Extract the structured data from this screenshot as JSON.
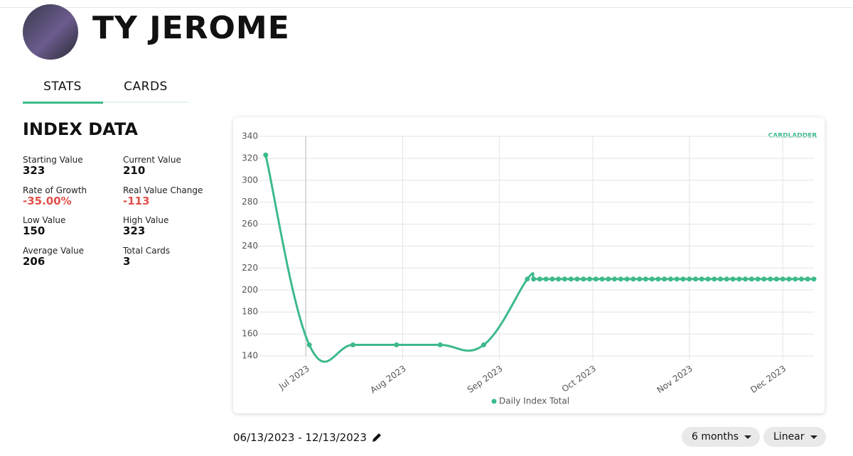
{
  "header": {
    "name": "TY JEROME"
  },
  "tabs": [
    "STATS",
    "CARDS"
  ],
  "index_data": {
    "title": "INDEX DATA",
    "stats": [
      {
        "label": "Starting Value",
        "value": 323
      },
      {
        "label": "Current Value",
        "value": 210
      },
      {
        "label": "Rate of Growth",
        "value": "-35.00%"
      },
      {
        "label": "Real Value Change",
        "value": "-113"
      },
      {
        "label": "Low Value",
        "value": 150
      },
      {
        "label": "High Value",
        "value": 323
      },
      {
        "label": "Average Value",
        "value": 206
      },
      {
        "label": "Total Cards",
        "value": 3
      }
    ]
  },
  "logo": "CARDLADDER",
  "chart_data": {
    "type": "line",
    "x": [
      "2023-06-18",
      "2023-07-02",
      "2023-07-16",
      "2023-07-30",
      "2023-08-13",
      "2023-08-27",
      "2023-09-10",
      "2023-09-12",
      "2023-09-14",
      "2023-09-16",
      "2023-09-18",
      "2023-09-20",
      "2023-09-22",
      "2023-09-24",
      "2023-09-26",
      "2023-09-28",
      "2023-09-30",
      "2023-10-02",
      "2023-10-04",
      "2023-10-06",
      "2023-10-08",
      "2023-10-10",
      "2023-10-12",
      "2023-10-14",
      "2023-10-16",
      "2023-10-18",
      "2023-10-20",
      "2023-10-22",
      "2023-10-24",
      "2023-10-26",
      "2023-10-28",
      "2023-10-30",
      "2023-11-01",
      "2023-11-03",
      "2023-11-05",
      "2023-11-07",
      "2023-11-09",
      "2023-11-11",
      "2023-11-13",
      "2023-11-15",
      "2023-11-17",
      "2023-11-19",
      "2023-11-21",
      "2023-11-23",
      "2023-11-25",
      "2023-11-27",
      "2023-11-29",
      "2023-12-01",
      "2023-12-03",
      "2023-12-05",
      "2023-12-07",
      "2023-12-09",
      "2023-12-11"
    ],
    "series": [
      {
        "name": "Daily Index Total",
        "color": "#3dba8b",
        "values": [
          323,
          150,
          150,
          150,
          150,
          150,
          210,
          210,
          210,
          210,
          210,
          210,
          210,
          210,
          210,
          210,
          210,
          210,
          210,
          210,
          210,
          210,
          210,
          210,
          210,
          210,
          210,
          210,
          210,
          210,
          210,
          210,
          210,
          210,
          210,
          210,
          210,
          210,
          210,
          210,
          210,
          210,
          210,
          210,
          210,
          210,
          210,
          210,
          210,
          210,
          210,
          210,
          210
        ]
      }
    ],
    "xlim": [
      "2023-06-16",
      "2023-12-11"
    ],
    "xticks": [
      {
        "value": "2023-07-01",
        "label": "Jul 2023"
      },
      {
        "value": "2023-08-01",
        "label": "Aug 2023"
      },
      {
        "value": "2023-09-01",
        "label": "Sep 2023"
      },
      {
        "value": "2023-10-01",
        "label": "Oct 2023"
      },
      {
        "value": "2023-11-01",
        "label": "Nov 2023"
      },
      {
        "value": "2023-12-01",
        "label": "Dec 2023"
      }
    ],
    "ylim": [
      140,
      340
    ],
    "yticks": [
      140,
      160,
      180,
      200,
      220,
      240,
      260,
      280,
      300,
      320,
      340
    ],
    "grid": true
  },
  "footer": {
    "date_range": "06/13/2023 - 12/13/2023",
    "period": "6 months",
    "scale": "Linear"
  }
}
